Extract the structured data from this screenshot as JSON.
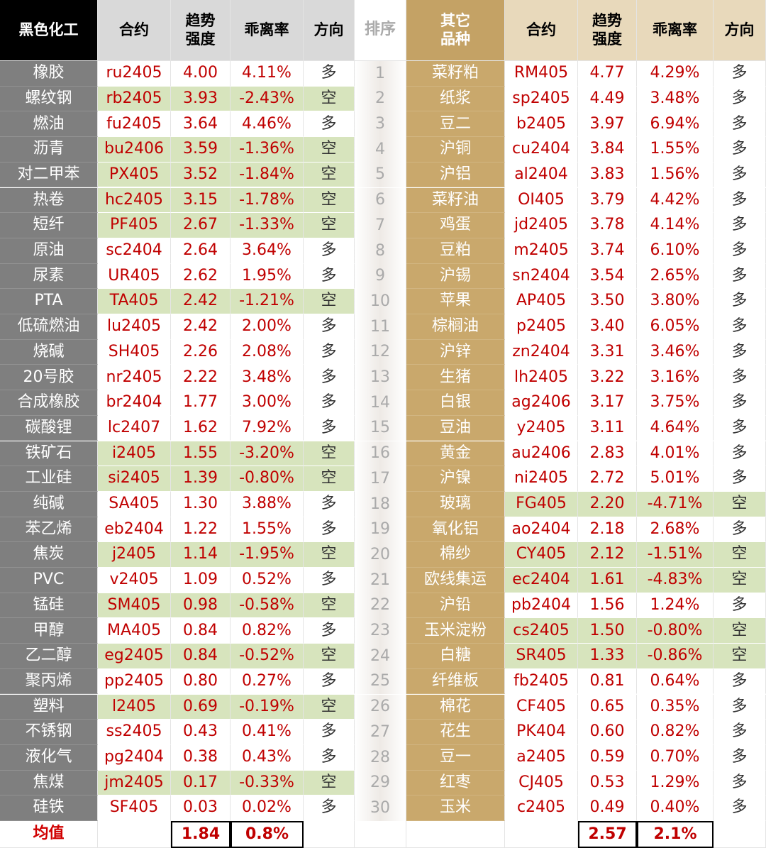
{
  "left": {
    "header": [
      "黑色化工",
      "合约",
      "趋势\n强度",
      "乖离率",
      "方向"
    ],
    "rows": [
      [
        "橡胶",
        "ru2405",
        "4.00",
        "4.11%",
        "多"
      ],
      [
        "螺纹钢",
        "rb2405",
        "3.93",
        "-2.43%",
        "空"
      ],
      [
        "燃油",
        "fu2405",
        "3.64",
        "4.46%",
        "多"
      ],
      [
        "沥青",
        "bu2406",
        "3.59",
        "-1.36%",
        "空"
      ],
      [
        "对二甲苯",
        "PX405",
        "3.52",
        "-1.84%",
        "空"
      ],
      [
        "热卷",
        "hc2405",
        "3.15",
        "-1.78%",
        "空"
      ],
      [
        "短纤",
        "PF405",
        "2.67",
        "-1.33%",
        "空"
      ],
      [
        "原油",
        "sc2404",
        "2.64",
        "3.64%",
        "多"
      ],
      [
        "尿素",
        "UR405",
        "2.62",
        "1.95%",
        "多"
      ],
      [
        "PTA",
        "TA405",
        "2.42",
        "-1.21%",
        "空"
      ],
      [
        "低硫燃油",
        "lu2405",
        "2.42",
        "2.00%",
        "多"
      ],
      [
        "烧碱",
        "SH405",
        "2.26",
        "2.08%",
        "多"
      ],
      [
        "20号胶",
        "nr2405",
        "2.22",
        "3.48%",
        "多"
      ],
      [
        "合成橡胶",
        "br2404",
        "1.77",
        "3.00%",
        "多"
      ],
      [
        "碳酸锂",
        "lc2407",
        "1.62",
        "7.92%",
        "多"
      ],
      [
        "铁矿石",
        "i2405",
        "1.55",
        "-3.20%",
        "空"
      ],
      [
        "工业硅",
        "si2405",
        "1.39",
        "-0.80%",
        "空"
      ],
      [
        "纯碱",
        "SA405",
        "1.30",
        "3.88%",
        "多"
      ],
      [
        "苯乙烯",
        "eb2404",
        "1.22",
        "1.55%",
        "多"
      ],
      [
        "焦炭",
        "j2405",
        "1.14",
        "-1.95%",
        "空"
      ],
      [
        "PVC",
        "v2405",
        "1.09",
        "0.52%",
        "多"
      ],
      [
        "锰硅",
        "SM405",
        "0.98",
        "-0.58%",
        "空"
      ],
      [
        "甲醇",
        "MA405",
        "0.84",
        "0.82%",
        "多"
      ],
      [
        "乙二醇",
        "eg2405",
        "0.84",
        "-0.52%",
        "空"
      ],
      [
        "聚丙烯",
        "pp2405",
        "0.80",
        "0.27%",
        "多"
      ],
      [
        "塑料",
        "l2405",
        "0.69",
        "-0.19%",
        "空"
      ],
      [
        "不锈钢",
        "ss2405",
        "0.43",
        "0.41%",
        "多"
      ],
      [
        "液化气",
        "pg2404",
        "0.38",
        "0.43%",
        "多"
      ],
      [
        "焦煤",
        "jm2405",
        "0.17",
        "-0.33%",
        "空"
      ],
      [
        "硅铁",
        "SF405",
        "0.03",
        "0.02%",
        "多"
      ]
    ]
  },
  "rank": {
    "header": "排序",
    "values": [
      1,
      2,
      3,
      4,
      5,
      6,
      7,
      8,
      9,
      10,
      11,
      12,
      13,
      14,
      15,
      16,
      17,
      18,
      19,
      20,
      21,
      22,
      23,
      24,
      25,
      26,
      27,
      28,
      29,
      30
    ]
  },
  "right": {
    "header": [
      "其它\n品种",
      "合约",
      "趋势\n强度",
      "乖离率",
      "方向"
    ],
    "rows": [
      [
        "菜籽粕",
        "RM405",
        "4.77",
        "4.29%",
        "多"
      ],
      [
        "纸浆",
        "sp2405",
        "4.49",
        "3.48%",
        "多"
      ],
      [
        "豆二",
        "b2405",
        "3.97",
        "6.94%",
        "多"
      ],
      [
        "沪铜",
        "cu2404",
        "3.84",
        "1.55%",
        "多"
      ],
      [
        "沪铝",
        "al2404",
        "3.83",
        "1.56%",
        "多"
      ],
      [
        "菜籽油",
        "OI405",
        "3.79",
        "4.42%",
        "多"
      ],
      [
        "鸡蛋",
        "jd2405",
        "3.78",
        "4.14%",
        "多"
      ],
      [
        "豆粕",
        "m2405",
        "3.74",
        "6.10%",
        "多"
      ],
      [
        "沪锡",
        "sn2404",
        "3.54",
        "2.65%",
        "多"
      ],
      [
        "苹果",
        "AP405",
        "3.50",
        "3.80%",
        "多"
      ],
      [
        "棕榈油",
        "p2405",
        "3.40",
        "6.05%",
        "多"
      ],
      [
        "沪锌",
        "zn2404",
        "3.31",
        "3.46%",
        "多"
      ],
      [
        "生猪",
        "lh2405",
        "3.22",
        "3.16%",
        "多"
      ],
      [
        "白银",
        "ag2406",
        "3.17",
        "3.75%",
        "多"
      ],
      [
        "豆油",
        "y2405",
        "3.11",
        "4.64%",
        "多"
      ],
      [
        "黄金",
        "au2406",
        "2.83",
        "4.01%",
        "多"
      ],
      [
        "沪镍",
        "ni2405",
        "2.72",
        "5.01%",
        "多"
      ],
      [
        "玻璃",
        "FG405",
        "2.20",
        "-4.71%",
        "空"
      ],
      [
        "氧化铝",
        "ao2404",
        "2.18",
        "2.68%",
        "多"
      ],
      [
        "棉纱",
        "CY405",
        "2.12",
        "-1.51%",
        "空"
      ],
      [
        "欧线集运",
        "ec2404",
        "1.61",
        "-4.83%",
        "空"
      ],
      [
        "沪铅",
        "pb2404",
        "1.56",
        "1.24%",
        "多"
      ],
      [
        "玉米淀粉",
        "cs2405",
        "1.50",
        "-0.80%",
        "空"
      ],
      [
        "白糖",
        "SR405",
        "1.33",
        "-0.86%",
        "空"
      ],
      [
        "纤维板",
        "fb2405",
        "0.81",
        "0.64%",
        "多"
      ],
      [
        "棉花",
        "CF405",
        "0.65",
        "0.35%",
        "多"
      ],
      [
        "花生",
        "PK404",
        "0.60",
        "0.82%",
        "多"
      ],
      [
        "豆一",
        "a2405",
        "0.59",
        "0.70%",
        "多"
      ],
      [
        "红枣",
        "CJ405",
        "0.53",
        "1.29%",
        "多"
      ],
      [
        "玉米",
        "c2405",
        "0.49",
        "0.40%",
        "多"
      ]
    ]
  },
  "footer": {
    "label": "均值",
    "left": [
      "1.84",
      "0.8%"
    ],
    "right": [
      "2.57",
      "2.1%"
    ]
  }
}
